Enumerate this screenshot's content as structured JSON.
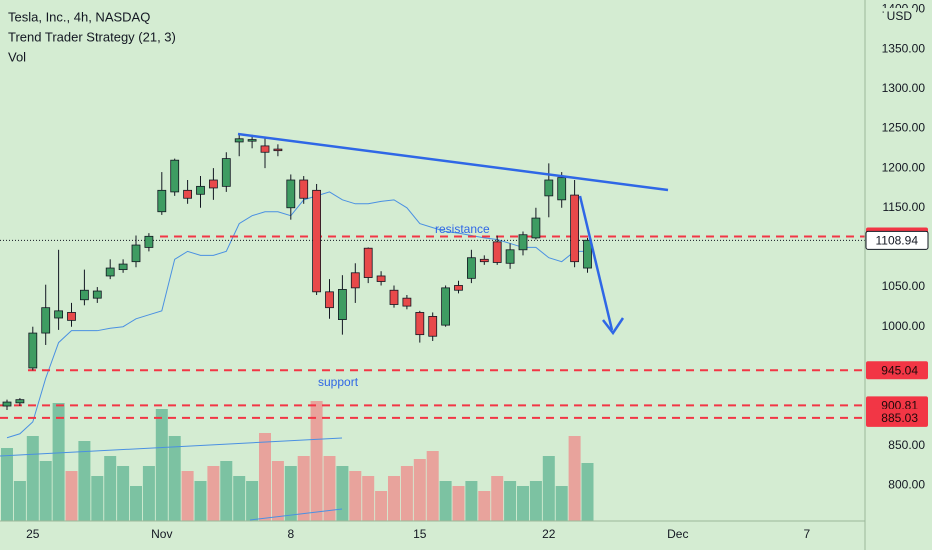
{
  "chart_data": {
    "type": "candlestick",
    "title": "Tesla, Inc., 4h, NASDAQ",
    "subtitle": "Trend Trader Strategy (21, 3)",
    "volume_label": "Vol",
    "currency": "USD",
    "annotations": [
      "resistance",
      "support"
    ],
    "categories": [
      null,
      null,
      "25",
      null,
      null,
      null,
      null,
      null,
      null,
      null,
      null,
      null,
      "Nov",
      null,
      null,
      null,
      null,
      null,
      null,
      null,
      null,
      null,
      "8",
      null,
      null,
      null,
      null,
      null,
      null,
      null,
      null,
      null,
      "15",
      null,
      null,
      null,
      null,
      null,
      null,
      null,
      null,
      null,
      "22",
      null,
      null,
      null,
      null,
      null,
      null,
      null,
      null,
      null,
      "Dec",
      null,
      null,
      null,
      null,
      null,
      null,
      null,
      null,
      null,
      "7",
      null,
      null,
      null,
      null
    ],
    "open": [
      900,
      904,
      948,
      992,
      1011,
      1018,
      1034,
      1036,
      1064,
      1072,
      1082,
      1100,
      1145,
      1170,
      1172,
      1167,
      1185,
      1177,
      1233,
      1234,
      1228,
      1224,
      1150,
      1185,
      1172,
      1044,
      1009,
      1068,
      1099,
      1064,
      1046,
      1036,
      1018,
      1013,
      1002,
      1052,
      1061,
      1085,
      1107,
      1080,
      1097,
      1112,
      1165,
      1160,
      1166,
      1074,
      null,
      null,
      null,
      null,
      null,
      null,
      null,
      null,
      null,
      null,
      null,
      null,
      null,
      null,
      null,
      null,
      null,
      null,
      null,
      null,
      null
    ],
    "high": [
      908,
      910,
      1000,
      1053,
      1097,
      1030,
      1072,
      1050,
      1085,
      1085,
      1115,
      1118,
      1195,
      1212,
      1185,
      1190,
      1200,
      1220,
      1244,
      1242,
      1238,
      1230,
      1192,
      1190,
      1180,
      1060,
      1065,
      1080,
      1100,
      1070,
      1052,
      1040,
      1020,
      1018,
      1052,
      1058,
      1097,
      1090,
      1115,
      1105,
      1120,
      1150,
      1206,
      1195,
      1185,
      1112,
      null,
      null,
      null,
      null,
      null,
      null,
      null,
      null,
      null,
      null,
      null,
      null,
      null,
      null,
      null,
      null,
      null,
      null,
      null,
      null,
      null
    ],
    "low": [
      895,
      900,
      945,
      977,
      996,
      1000,
      1027,
      1030,
      1060,
      1068,
      1075,
      1095,
      1141,
      1165,
      1155,
      1150,
      1160,
      1170,
      1215,
      1225,
      1200,
      1215,
      1135,
      1155,
      1040,
      1010,
      990,
      1030,
      1055,
      1052,
      1024,
      1022,
      980,
      982,
      1000,
      1042,
      1055,
      1078,
      1078,
      1073,
      1090,
      1110,
      1138,
      1150,
      1075,
      1068,
      null,
      null,
      null,
      null,
      null,
      null,
      null,
      null,
      null,
      null,
      null,
      null,
      null,
      null,
      null,
      null,
      null,
      null,
      null,
      null,
      null
    ],
    "close": [
      905,
      908,
      992,
      1024,
      1020,
      1008,
      1046,
      1045,
      1074,
      1079,
      1103,
      1114,
      1172,
      1210,
      1162,
      1177,
      1175,
      1212,
      1237,
      1236,
      1220,
      1222,
      1185,
      1162,
      1044,
      1024,
      1047,
      1049,
      1062,
      1057,
      1028,
      1026,
      990,
      988,
      1049,
      1046,
      1087,
      1082,
      1081,
      1097,
      1116,
      1137,
      1185,
      1188,
      1082,
      1109,
      null,
      null,
      null,
      null,
      null,
      null,
      null,
      null,
      null,
      null,
      null,
      null,
      null,
      null,
      null,
      null,
      null,
      null,
      null,
      null,
      null
    ],
    "strategy_line": [
      860,
      865,
      880,
      935,
      980,
      995,
      995,
      995,
      998,
      1000,
      1010,
      1015,
      1020,
      1085,
      1095,
      1090,
      1090,
      1095,
      1130,
      1140,
      1145,
      1145,
      1140,
      1160,
      1165,
      1170,
      1160,
      1155,
      1155,
      1158,
      1160,
      1150,
      1130,
      1125,
      1120,
      1118,
      1115,
      1112,
      1110,
      1105,
      1100,
      1100,
      1087,
      1082,
      1095,
      1095,
      null,
      null,
      null,
      null,
      null,
      null,
      null,
      null,
      null,
      null,
      null,
      null,
      null,
      null,
      null,
      null,
      null,
      null,
      null,
      null,
      null
    ],
    "volume": {
      "values": [
        73,
        40,
        85,
        60,
        118,
        50,
        80,
        45,
        65,
        55,
        35,
        55,
        112,
        85,
        50,
        40,
        55,
        60,
        45,
        40,
        88,
        60,
        55,
        65,
        120,
        65,
        55,
        50,
        45,
        30,
        45,
        55,
        62,
        70,
        40,
        35,
        40,
        30,
        45,
        40,
        35,
        40,
        65,
        35,
        85,
        58,
        null,
        null,
        null,
        null,
        null,
        null,
        null,
        null,
        null,
        null,
        null,
        null,
        null,
        null,
        null,
        null,
        null,
        null,
        null,
        null,
        null
      ],
      "ylim": [
        0,
        160
      ]
    },
    "colors": {
      "up": "#3e9c62",
      "down": "#e8494a",
      "volume_up": "#7cc2a2",
      "volume_down": "#e8a39c",
      "line": "#4a90e2",
      "level": "#f23645"
    },
    "ylim": [
      755,
      1412
    ],
    "yticks": [
      {
        "value": 1400,
        "label": "1400.00"
      },
      {
        "value": 1350,
        "label": "1350.00"
      },
      {
        "value": 1300,
        "label": "1300.00"
      },
      {
        "value": 1250,
        "label": "1250.00"
      },
      {
        "value": 1200,
        "label": "1200.00"
      },
      {
        "value": 1150,
        "label": "1150.00"
      },
      {
        "value": 1050,
        "label": "1050.00"
      },
      {
        "value": 1000,
        "label": "1000.00"
      },
      {
        "value": 850,
        "label": "850.00"
      },
      {
        "value": 800,
        "label": "800.00"
      }
    ],
    "levels": [
      1113.82,
      945.04,
      900.81,
      885.03
    ],
    "last_price": 1108.94
  }
}
